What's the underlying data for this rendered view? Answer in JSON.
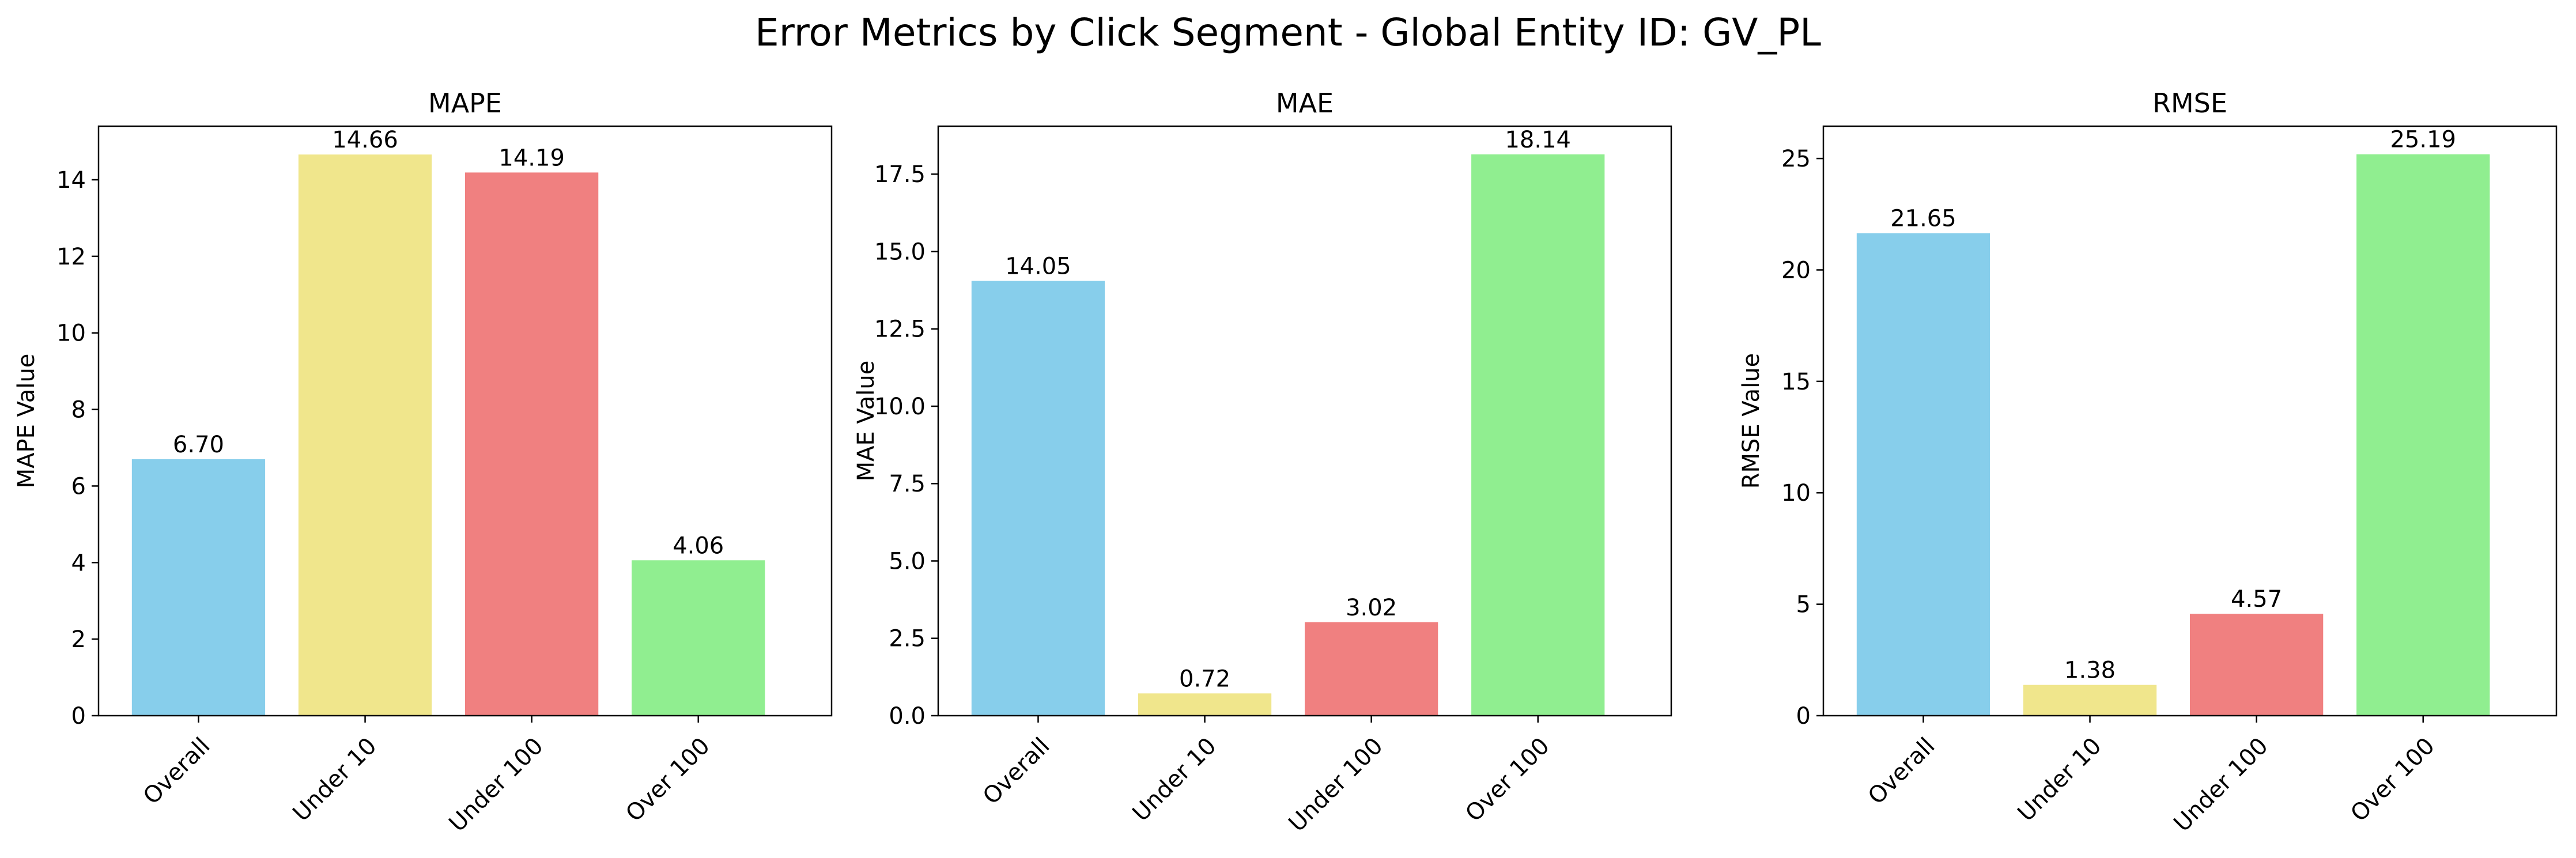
{
  "figure_title": "Error Metrics by Click Segment - Global Entity ID: GV_PL",
  "colors": {
    "Overall": "#87CEEB",
    "Under 10": "#F0E68C",
    "Under 100": "#F08080",
    "Over 100": "#90EE90"
  },
  "chart_data": [
    {
      "type": "bar",
      "title": "MAPE",
      "ylabel": "MAPE Value",
      "categories": [
        "Overall",
        "Under 10",
        "Under 100",
        "Over 100"
      ],
      "values": [
        6.7,
        14.66,
        14.19,
        4.06
      ],
      "value_labels": [
        "6.70",
        "14.66",
        "14.19",
        "4.06"
      ],
      "ylim": [
        0,
        15.4
      ],
      "yticks": [
        0,
        2,
        4,
        6,
        8,
        10,
        12,
        14
      ],
      "ytick_labels": [
        "0",
        "2",
        "4",
        "6",
        "8",
        "10",
        "12",
        "14"
      ],
      "grid": false
    },
    {
      "type": "bar",
      "title": "MAE",
      "ylabel": "MAE Value",
      "categories": [
        "Overall",
        "Under 10",
        "Under 100",
        "Over 100"
      ],
      "values": [
        14.05,
        0.72,
        3.02,
        18.14
      ],
      "value_labels": [
        "14.05",
        "0.72",
        "3.02",
        "18.14"
      ],
      "ylim": [
        0,
        19.05
      ],
      "yticks": [
        0,
        2.5,
        5,
        7.5,
        10,
        12.5,
        15,
        17.5
      ],
      "ytick_labels": [
        "0.0",
        "2.5",
        "5.0",
        "7.5",
        "10.0",
        "12.5",
        "15.0",
        "17.5"
      ],
      "grid": false
    },
    {
      "type": "bar",
      "title": "RMSE",
      "ylabel": "RMSE Value",
      "categories": [
        "Overall",
        "Under 10",
        "Under 100",
        "Over 100"
      ],
      "values": [
        21.65,
        1.38,
        4.57,
        25.19
      ],
      "value_labels": [
        "21.65",
        "1.38",
        "4.57",
        "25.19"
      ],
      "ylim": [
        0,
        26.45
      ],
      "yticks": [
        0,
        5,
        10,
        15,
        20,
        25
      ],
      "ytick_labels": [
        "0",
        "5",
        "10",
        "15",
        "20",
        "25"
      ],
      "grid": false
    }
  ]
}
